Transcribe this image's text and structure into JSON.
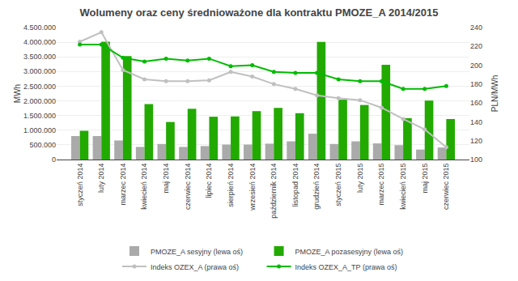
{
  "chart_data": {
    "type": "bar",
    "title": "Wolumeny oraz ceny średnioważone dla kontraktu PMOZE_A 2014/2015",
    "categories": [
      "styczeń 2014",
      "luty 2014",
      "marzec 2014",
      "kwiecień 2014",
      "maj 2014",
      "czerwiec 2014",
      "lipiec 2014",
      "sierpień 2014",
      "wrzesień 2014",
      "październik 2014",
      "listopad 2014",
      "grudzień 2014",
      "styczeń 2015",
      "luty 2015",
      "marzec 2015",
      "kwiecień 2015",
      "maj 2015",
      "czerwiec 2015"
    ],
    "series": [
      {
        "name": "PMOZE_A sesyjny (lewa oś)",
        "type": "bar",
        "color": "#aaaaaa",
        "values": [
          800000,
          800000,
          650000,
          430000,
          530000,
          430000,
          460000,
          510000,
          510000,
          540000,
          620000,
          880000,
          530000,
          620000,
          550000,
          490000,
          340000,
          410000
        ]
      },
      {
        "name": "PMOZE_A pozasesyjny (lewa oś)",
        "type": "bar",
        "color": "#22aa00",
        "values": [
          980000,
          4020000,
          3530000,
          1890000,
          1280000,
          1730000,
          1460000,
          1470000,
          1650000,
          1760000,
          1580000,
          4010000,
          2040000,
          1860000,
          3230000,
          1410000,
          2010000,
          1380000
        ]
      },
      {
        "name": "Indeks OZEX_A (prawa oś)",
        "type": "line",
        "axis": "y2",
        "marker": "circle",
        "color": "#c0c0c0",
        "values": [
          225,
          235,
          195,
          185,
          183,
          183,
          184,
          193,
          188,
          180,
          175,
          168,
          165,
          163,
          155,
          143,
          132,
          113
        ]
      },
      {
        "name": "Indeks OZEX_A_TP (prawa oś)",
        "type": "line",
        "axis": "y2",
        "marker": "circle",
        "color": "#00bb00",
        "values": [
          222,
          222,
          208,
          204,
          207,
          205,
          207,
          199,
          200,
          193,
          192,
          192,
          185,
          183,
          183,
          175,
          175,
          178
        ]
      }
    ],
    "ylabel": "MWh",
    "y2label": "PLN/MWh",
    "ylim": [
      0,
      4500000
    ],
    "yticks": [
      0,
      {
        "value": 500000,
        "label": "500.000"
      },
      {
        "value": 1000000,
        "label": "1.000.000"
      },
      {
        "value": 1500000,
        "label": "1.500.000"
      },
      {
        "value": 2000000,
        "label": "2.000.000"
      },
      {
        "value": 2500000,
        "label": "2.500.000"
      },
      {
        "value": 3000000,
        "label": "3.000.000"
      },
      {
        "value": 3500000,
        "label": "3.500.000"
      },
      {
        "value": 4000000,
        "label": "4.000.000"
      },
      {
        "value": 4500000,
        "label": "4.500.000"
      }
    ],
    "y2lim": [
      100,
      240
    ],
    "y2ticks": [
      100,
      120,
      140,
      160,
      180,
      200,
      220,
      240
    ],
    "grid": true,
    "legend": "bottom"
  }
}
